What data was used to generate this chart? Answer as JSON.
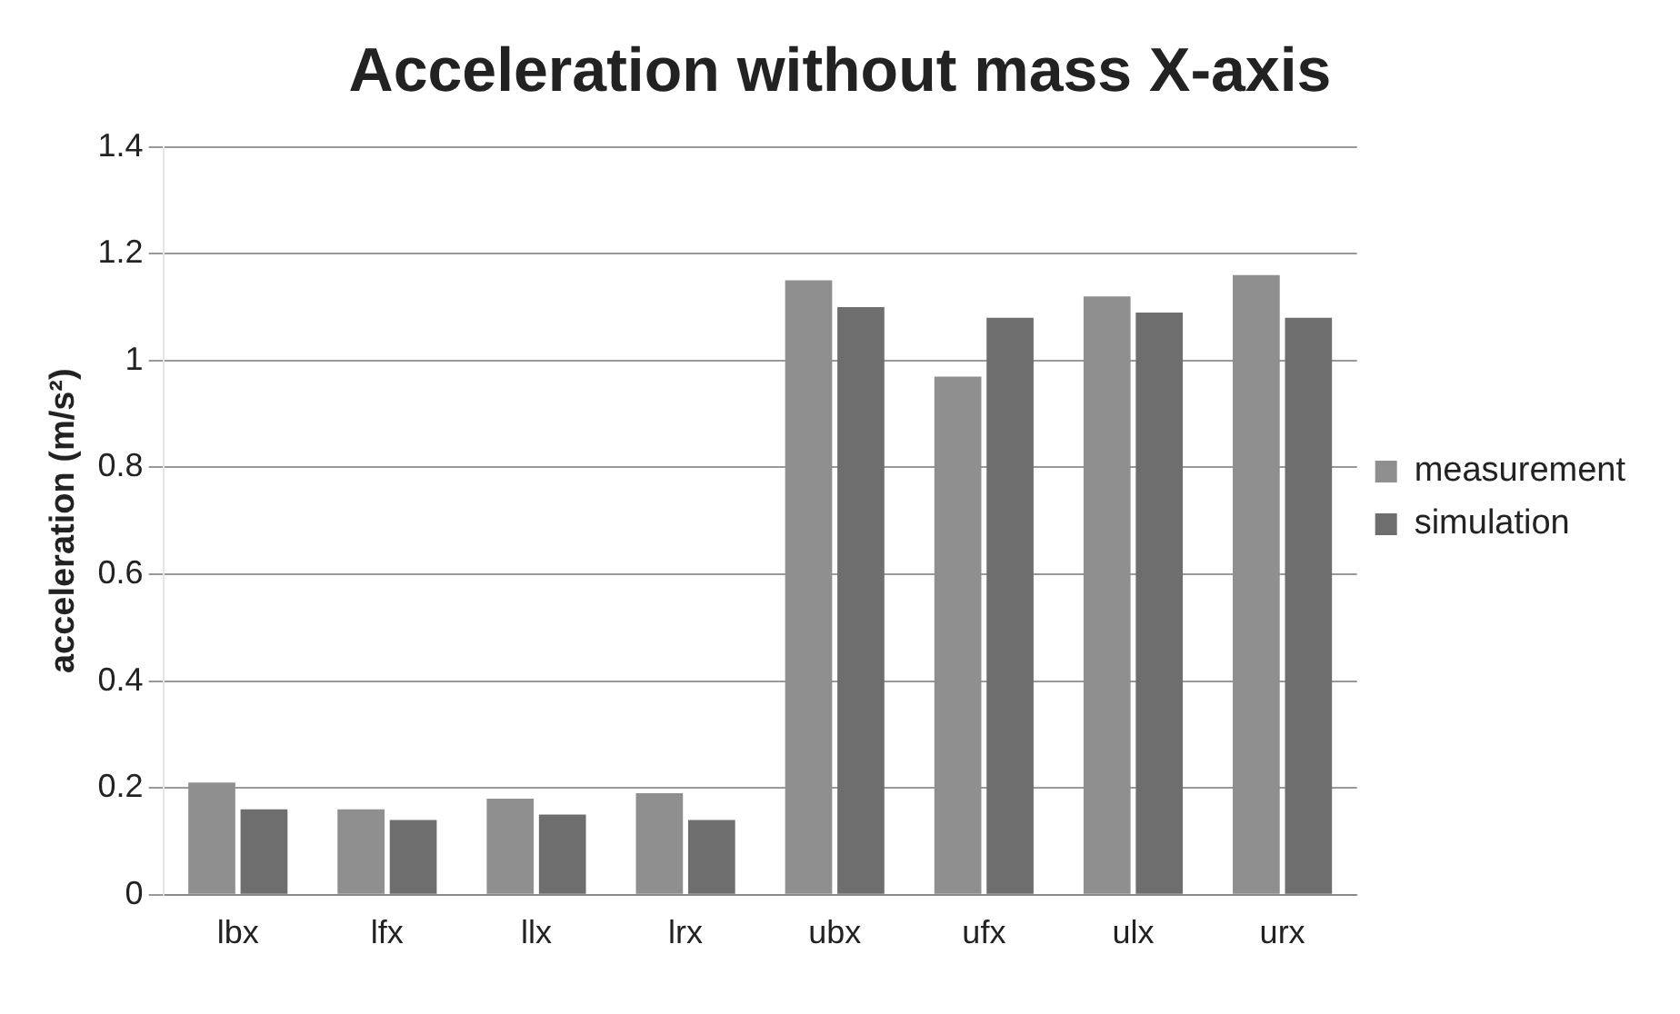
{
  "chart_data": {
    "type": "bar",
    "title": "Acceleration without mass X-axis",
    "ylabel": "acceleration (m/s²)",
    "categories": [
      "lbx",
      "lfx",
      "llx",
      "lrx",
      "ubx",
      "ufx",
      "ulx",
      "urx"
    ],
    "series": [
      {
        "name": "measurement",
        "color": "#8f8f8f",
        "values": [
          0.21,
          0.16,
          0.18,
          0.19,
          1.15,
          0.97,
          1.12,
          1.16
        ]
      },
      {
        "name": "simulation",
        "color": "#6e6e6e",
        "values": [
          0.16,
          0.14,
          0.15,
          0.14,
          1.1,
          1.08,
          1.09,
          1.08
        ]
      }
    ],
    "ylim": [
      0,
      1.4
    ],
    "yticks": [
      0,
      0.2,
      0.4,
      0.6,
      0.8,
      1,
      1.2,
      1.4
    ],
    "grid": "y",
    "legend": "right"
  }
}
